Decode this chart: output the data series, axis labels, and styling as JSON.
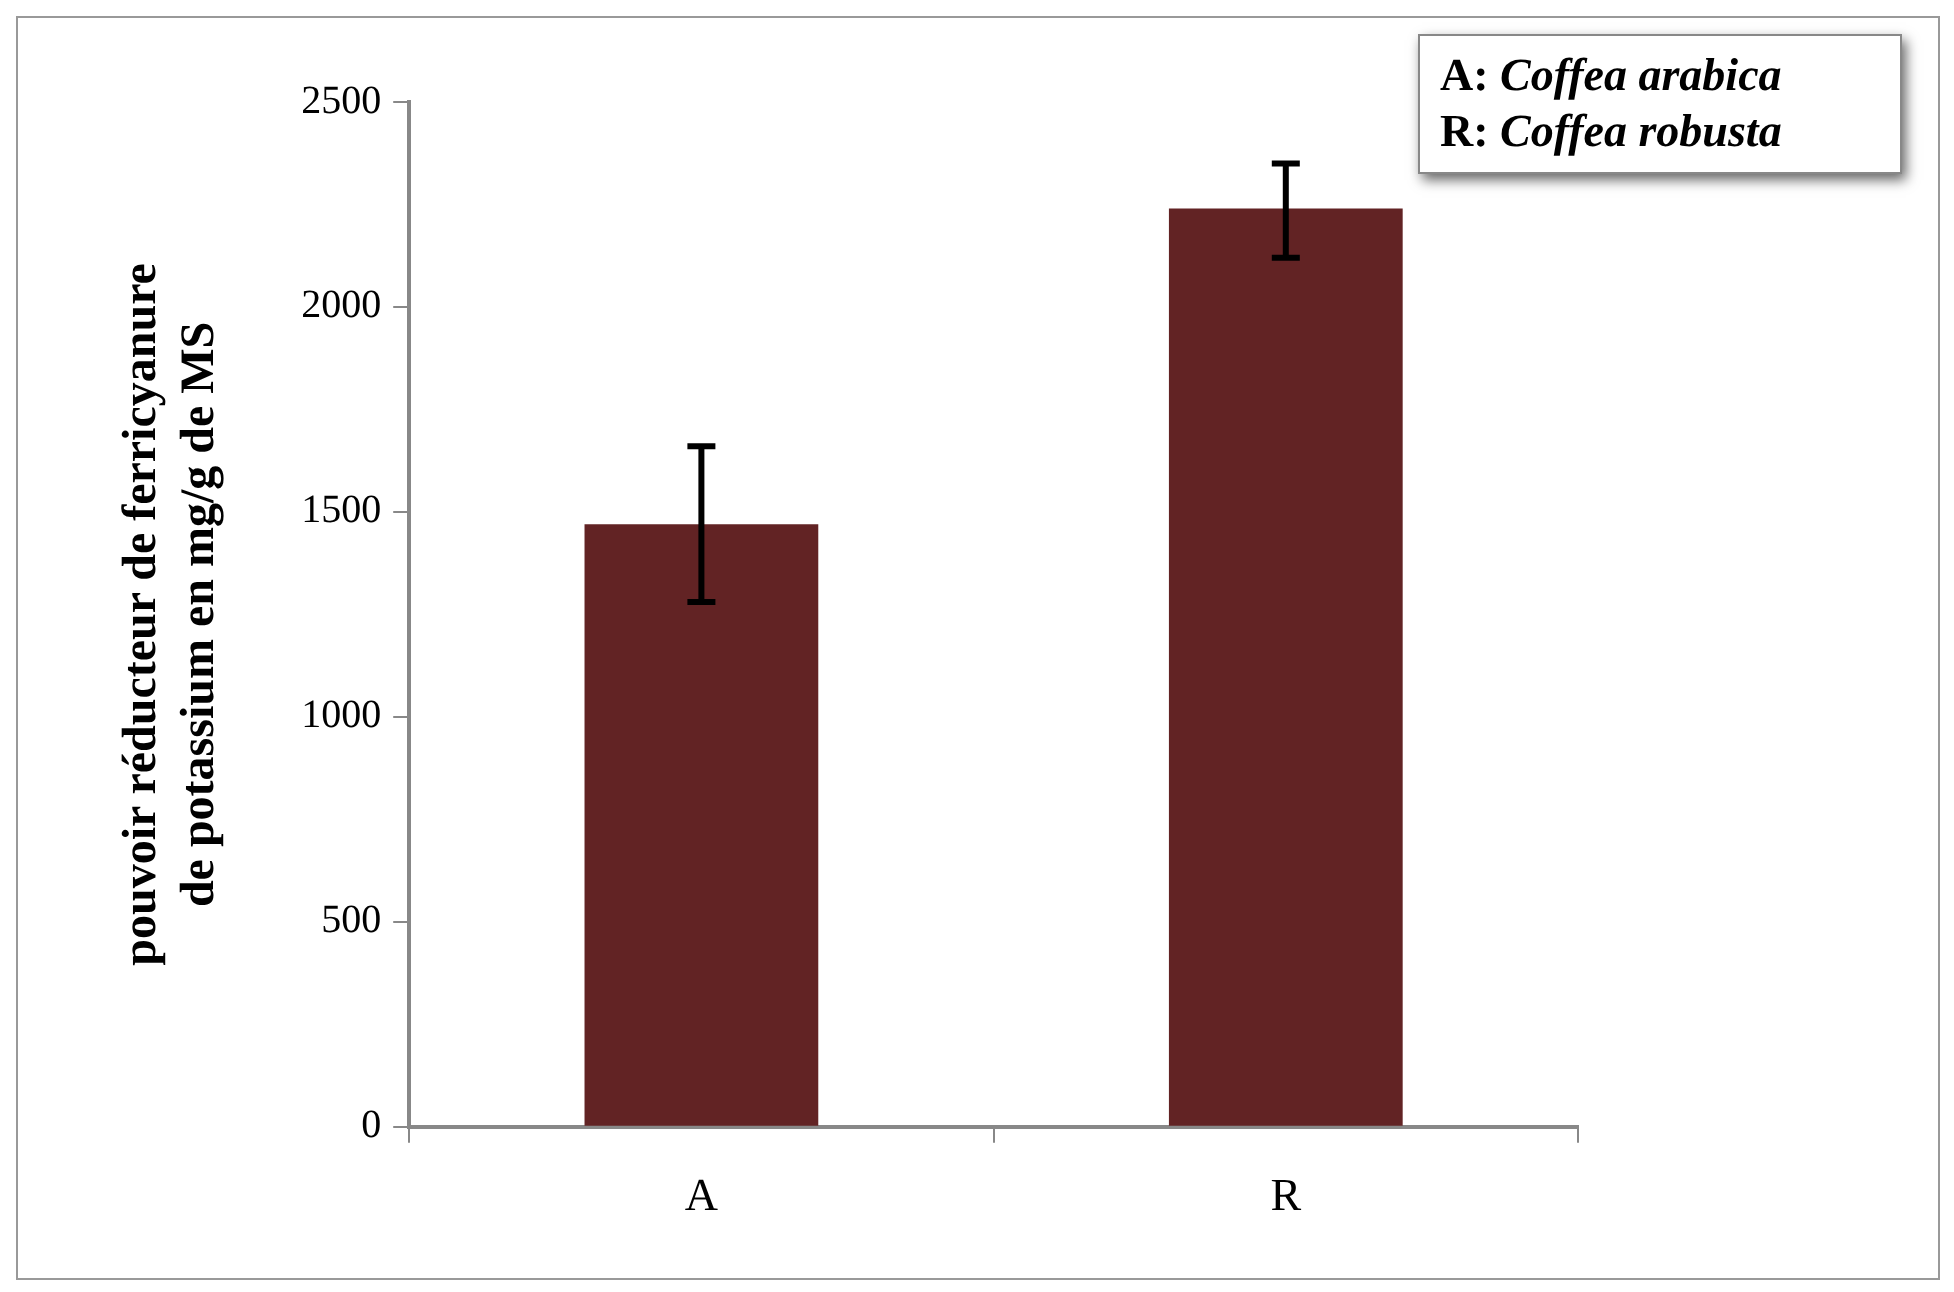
{
  "chart_data": {
    "type": "bar",
    "ylabel": "pouvoir réducteur de ferricyanure de potassium en mg/g de MS",
    "categories": [
      "A",
      "R"
    ],
    "values": [
      1470,
      2240
    ],
    "errors": [
      [
        1280,
        1660
      ],
      [
        2120,
        2350
      ]
    ],
    "color": "#622324",
    "ylim": [
      0,
      2500
    ],
    "yticks": [
      0,
      500,
      1000,
      1500,
      2000,
      2500
    ],
    "grid": false,
    "legend": false,
    "annotations": [
      "A: Coffea arabica",
      "R: Coffea robusta"
    ]
  }
}
